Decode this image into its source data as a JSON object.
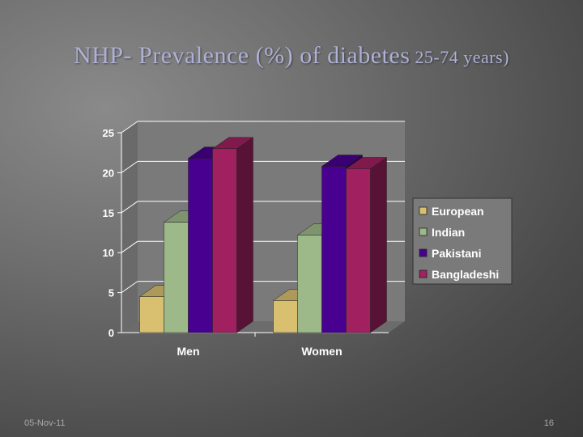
{
  "slide": {
    "title_main": "NHP- Prevalence (%) of diabetes",
    "title_sub": " 25-74 years)",
    "date": "05-Nov-11",
    "page_number": "16"
  },
  "colors": {
    "European": "#d8c070",
    "Indian": "#9db98a",
    "Pakistani": "#480090",
    "Bangladeshi": "#a02060"
  },
  "chart_data": {
    "type": "bar",
    "categories": [
      "Men",
      "Women"
    ],
    "series": [
      {
        "name": "European",
        "values": [
          4.5,
          4.0
        ]
      },
      {
        "name": "Indian",
        "values": [
          13.8,
          12.2
        ]
      },
      {
        "name": "Pakistani",
        "values": [
          21.8,
          20.8
        ]
      },
      {
        "name": "Bangladeshi",
        "values": [
          23.0,
          20.5
        ]
      }
    ],
    "yticks": [
      "0",
      "5",
      "10",
      "15",
      "20",
      "25"
    ],
    "ylim": [
      0,
      25
    ],
    "grid": true,
    "legend_position": "right",
    "style": "3d-clustered"
  }
}
